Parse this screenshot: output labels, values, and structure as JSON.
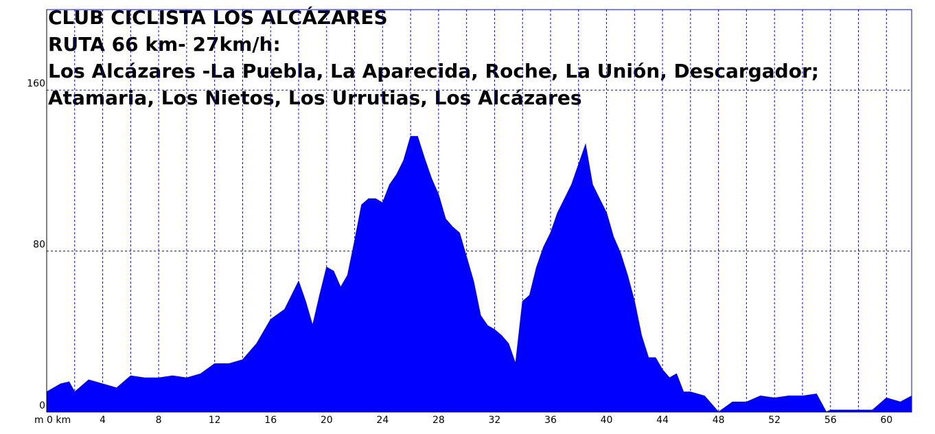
{
  "chart_data": {
    "type": "area",
    "title": "CLUB CICLISTA LOS ALCÁZARES",
    "subtitle_lines": [
      "RUTA 66 km- 27km/h:",
      "Los Alcázares -La Puebla, La Aparecida, Roche, La Unión, Descargador;",
      "Atamaria, Los Nietos, Los Urrutias, Los Alcázares"
    ],
    "ylabel": "m",
    "color": "#0000ff",
    "x": [
      0,
      1,
      1.6,
      2,
      3,
      4,
      5,
      6,
      7,
      8,
      9,
      10,
      11,
      12,
      13,
      14,
      15,
      16,
      17,
      18,
      18.5,
      19,
      19.5,
      20,
      20.5,
      21,
      21.5,
      22,
      22.5,
      23,
      23.5,
      24,
      24.5,
      25,
      25.5,
      26,
      26.5,
      27,
      27.5,
      28,
      28.5,
      29,
      29.5,
      30,
      30.5,
      31,
      31.5,
      32,
      32.5,
      33,
      33.5,
      34,
      34.5,
      35,
      35.5,
      36,
      36.5,
      37,
      37.5,
      38,
      38.5,
      39,
      39.5,
      40,
      40.5,
      41,
      41.5,
      42,
      42.5,
      43,
      43.5,
      44,
      44.5,
      45,
      45.5,
      46,
      47,
      48,
      49,
      50,
      51,
      52,
      53,
      54,
      55,
      55.7,
      56,
      57,
      58,
      59,
      60,
      61,
      61.8
    ],
    "values": [
      10,
      14,
      15,
      10,
      16,
      14,
      12,
      18,
      17,
      17,
      18,
      17,
      19,
      24,
      24,
      26,
      34,
      46,
      51,
      65,
      55,
      43,
      58,
      72,
      70,
      62,
      68,
      85,
      103,
      106,
      106,
      104,
      113,
      118,
      125,
      137,
      137,
      126,
      116,
      108,
      96,
      92,
      89,
      77,
      65,
      48,
      43,
      41,
      38,
      34,
      24,
      55,
      58,
      72,
      82,
      89,
      99,
      106,
      113,
      123,
      133,
      113,
      106,
      99,
      87,
      79,
      68,
      55,
      38,
      27,
      27,
      21,
      17,
      19,
      10,
      10,
      8,
      0,
      5,
      5,
      8,
      7,
      8,
      8,
      9,
      0,
      1,
      1,
      1,
      1,
      7,
      5,
      8
    ],
    "xlim": [
      0,
      61.8
    ],
    "xticks": [
      {
        "value": 0,
        "label": "0 km"
      },
      4,
      8,
      12,
      16,
      20,
      24,
      28,
      32,
      36,
      40,
      44,
      48,
      52,
      56,
      60
    ],
    "xminor_ticks": [
      2,
      6,
      10,
      14,
      18,
      22,
      26,
      30,
      34,
      38,
      42,
      46,
      50,
      54,
      58
    ],
    "ylim": [
      0,
      200
    ],
    "yticks": [
      0,
      80,
      160
    ],
    "grid": true
  }
}
